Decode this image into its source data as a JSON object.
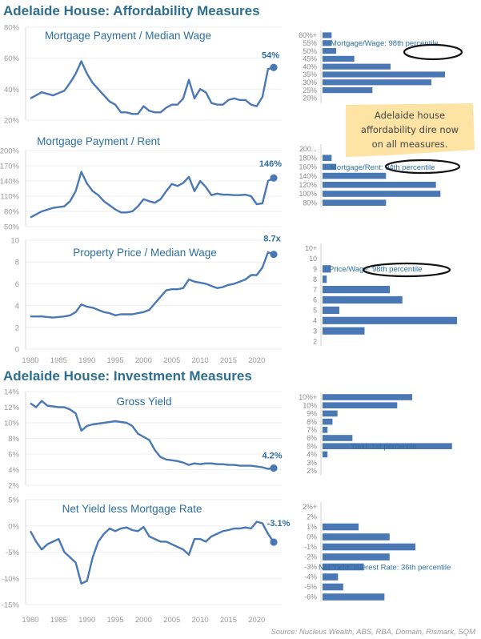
{
  "titles": {
    "affordability": "Adelaide House: Affordability Measures",
    "investment": "Adelaide House: Investment Measures"
  },
  "note": {
    "lines": [
      "Adelaide house",
      "affordability dire now",
      "on all measures."
    ],
    "color": "#fde4a5"
  },
  "source": "Source: Nucleus Wealth, ABS, RBA, Domain, Rismark, SQM",
  "colors": {
    "line": "#4a78b4",
    "bar": "#4a78b4",
    "title": "#2e6f8f",
    "tick": "#9a9a9a"
  },
  "chart_data": [
    {
      "type": "line",
      "title": "Mortgage Payment / Median Wage",
      "yticks": [
        "20%",
        "40%",
        "60%",
        "80%"
      ],
      "ylim": [
        20,
        80
      ],
      "end_label": "54%",
      "series": [
        {
          "x": [
            1980,
            1982,
            1984,
            1986,
            1987,
            1988,
            1989,
            1990,
            1991,
            1992,
            1993,
            1994,
            1995,
            1996,
            1997,
            1998,
            1999,
            2000,
            2001,
            2002,
            2003,
            2004,
            2005,
            2006,
            2007,
            2008,
            2009,
            2010,
            2011,
            2012,
            2013,
            2014,
            2015,
            2016,
            2017,
            2018,
            2019,
            2020,
            2021,
            2022,
            2023
          ],
          "values": [
            34,
            38,
            36,
            39,
            44,
            50,
            58,
            50,
            44,
            40,
            36,
            32,
            30,
            25,
            25,
            24,
            24,
            29,
            26,
            25,
            25,
            28,
            30,
            30,
            34,
            46,
            34,
            40,
            38,
            31,
            30,
            30,
            33,
            34,
            33,
            33,
            30,
            29,
            35,
            53,
            54
          ]
        }
      ]
    },
    {
      "type": "line",
      "title": "Mortgage Payment / Rent",
      "yticks": [
        "50%",
        "80%",
        "110%",
        "140%",
        "170%",
        "200%"
      ],
      "ylim": [
        50,
        200
      ],
      "end_label": "146%",
      "series": [
        {
          "x": [
            1980,
            1982,
            1984,
            1986,
            1987,
            1988,
            1989,
            1990,
            1991,
            1992,
            1993,
            1994,
            1995,
            1996,
            1997,
            1998,
            1999,
            2000,
            2001,
            2002,
            2003,
            2004,
            2005,
            2006,
            2007,
            2008,
            2009,
            2010,
            2011,
            2012,
            2013,
            2014,
            2015,
            2016,
            2017,
            2018,
            2019,
            2020,
            2021,
            2022,
            2023
          ],
          "values": [
            68,
            80,
            87,
            90,
            100,
            120,
            158,
            135,
            120,
            112,
            100,
            92,
            84,
            78,
            78,
            80,
            90,
            104,
            100,
            97,
            104,
            120,
            134,
            130,
            136,
            148,
            120,
            140,
            128,
            112,
            115,
            113,
            113,
            112,
            112,
            113,
            110,
            94,
            96,
            140,
            146
          ]
        }
      ]
    },
    {
      "type": "line",
      "title": "Property Price / Median Wage",
      "yticks": [
        "0",
        "2",
        "4",
        "6",
        "8",
        "10"
      ],
      "ylim": [
        0,
        10
      ],
      "xticks": [
        "1980",
        "1985",
        "1990",
        "1995",
        "2000",
        "2005",
        "2010",
        "2015",
        "2020"
      ],
      "end_label": "8.7x",
      "series": [
        {
          "x": [
            1980,
            1982,
            1984,
            1986,
            1987,
            1988,
            1989,
            1990,
            1991,
            1992,
            1993,
            1994,
            1995,
            1996,
            1997,
            1998,
            1999,
            2000,
            2001,
            2002,
            2003,
            2004,
            2005,
            2006,
            2007,
            2008,
            2009,
            2010,
            2011,
            2012,
            2013,
            2014,
            2015,
            2016,
            2017,
            2018,
            2019,
            2020,
            2021,
            2022,
            2023
          ],
          "values": [
            3.0,
            3.0,
            2.9,
            3.0,
            3.1,
            3.4,
            4.1,
            3.9,
            3.8,
            3.6,
            3.4,
            3.3,
            3.1,
            3.2,
            3.2,
            3.2,
            3.3,
            3.4,
            3.6,
            4.2,
            4.8,
            5.4,
            5.5,
            5.5,
            5.6,
            6.4,
            6.2,
            6.1,
            6.0,
            5.8,
            5.6,
            5.7,
            5.9,
            6.0,
            6.2,
            6.4,
            6.8,
            6.8,
            7.5,
            8.9,
            8.7
          ]
        }
      ]
    },
    {
      "type": "line",
      "title": "Gross Yield",
      "yticks": [
        "2%",
        "4%",
        "6%",
        "8%",
        "10%",
        "12%",
        "14%"
      ],
      "ylim": [
        2,
        14
      ],
      "end_label": "4.2%",
      "series": [
        {
          "x": [
            1980,
            1981,
            1982,
            1983,
            1984,
            1985,
            1986,
            1987,
            1988,
            1989,
            1990,
            1991,
            1992,
            1993,
            1994,
            1995,
            1996,
            1997,
            1998,
            1999,
            2000,
            2001,
            2002,
            2003,
            2004,
            2005,
            2006,
            2007,
            2008,
            2009,
            2010,
            2011,
            2012,
            2013,
            2014,
            2015,
            2016,
            2017,
            2018,
            2019,
            2020,
            2021,
            2022,
            2023
          ],
          "values": [
            12.5,
            12.0,
            12.8,
            12.2,
            12.1,
            12.0,
            12.0,
            11.7,
            11.2,
            9.0,
            9.6,
            9.8,
            9.9,
            10.0,
            10.1,
            10.2,
            10.1,
            10.0,
            9.6,
            8.6,
            8.2,
            7.8,
            6.5,
            5.6,
            5.3,
            5.2,
            5.1,
            4.9,
            4.6,
            4.8,
            4.7,
            4.8,
            4.8,
            4.7,
            4.7,
            4.6,
            4.6,
            4.5,
            4.5,
            4.5,
            4.4,
            4.3,
            4.1,
            4.2
          ]
        }
      ]
    },
    {
      "type": "line",
      "title": "Net Yield less Mortgage Rate",
      "yticks": [
        "-15%",
        "-10%",
        "-5%",
        "0%",
        "5%"
      ],
      "ylim": [
        -15,
        5
      ],
      "xticks": [
        "1980",
        "1985",
        "1990",
        "1995",
        "2000",
        "2005",
        "2010",
        "2015",
        "2020"
      ],
      "end_label": "-3.1%",
      "series": [
        {
          "x": [
            1980,
            1981,
            1982,
            1983,
            1984,
            1985,
            1986,
            1987,
            1988,
            1989,
            1990,
            1991,
            1992,
            1993,
            1994,
            1995,
            1996,
            1997,
            1998,
            1999,
            2000,
            2001,
            2002,
            2003,
            2004,
            2005,
            2006,
            2007,
            2008,
            2009,
            2010,
            2011,
            2012,
            2013,
            2014,
            2015,
            2016,
            2017,
            2018,
            2019,
            2020,
            2021,
            2022,
            2023
          ],
          "values": [
            -1.0,
            -3.0,
            -4.5,
            -3.5,
            -3.0,
            -2.5,
            -5.0,
            -6.0,
            -7.0,
            -11.0,
            -10.5,
            -6.0,
            -3.0,
            -1.5,
            -0.5,
            -1.0,
            -0.5,
            -0.3,
            -0.8,
            -1.0,
            -0.2,
            -2.0,
            -2.5,
            -3.0,
            -3.0,
            -3.5,
            -4.0,
            -4.5,
            -5.5,
            -2.5,
            -2.5,
            -3.0,
            -2.0,
            -1.5,
            -1.0,
            -0.8,
            -0.5,
            -0.5,
            -0.3,
            -0.5,
            0.8,
            0.5,
            -1.5,
            -3.1
          ]
        }
      ]
    },
    {
      "type": "bar",
      "orientation": "horizontal",
      "categories": [
        "60%+",
        "55%",
        "50%",
        "45%",
        "40%",
        "35%",
        "30%",
        "25%",
        "20%"
      ],
      "values": [
        2,
        2,
        3,
        7,
        15,
        27,
        24,
        11,
        0
      ],
      "xlim": [
        0,
        30
      ],
      "annotation": "Mortgage/Wage: 98th percentile"
    },
    {
      "type": "bar",
      "orientation": "horizontal",
      "categories": [
        "200...",
        "180%",
        "160%",
        "140%",
        "120%",
        "100%",
        "80%"
      ],
      "values": [
        0,
        2,
        3,
        14,
        25,
        26,
        14
      ],
      "xlim": [
        0,
        30
      ],
      "annotation": "Mortgage/Rent: 94th percentile"
    },
    {
      "type": "bar",
      "orientation": "horizontal",
      "categories": [
        "10+",
        "10",
        "9",
        "8",
        "7",
        "6",
        "5",
        "4",
        "3",
        "2"
      ],
      "values": [
        0,
        0,
        2,
        1,
        16,
        19,
        4,
        32,
        10,
        0
      ],
      "xlim": [
        0,
        32
      ],
      "annotation": "Price/Wage: 98th percentile"
    },
    {
      "type": "bar",
      "orientation": "horizontal",
      "categories": [
        "10%+",
        "10%",
        "9%",
        "8%",
        "7%",
        "6%",
        "5%",
        "4%",
        "3%",
        "2%"
      ],
      "values": [
        18,
        15,
        3,
        2,
        1,
        6,
        26,
        1,
        0,
        0
      ],
      "xlim": [
        0,
        27
      ],
      "annotation": "Yield: 1st percentile"
    },
    {
      "type": "bar",
      "orientation": "horizontal",
      "categories": [
        "2%+",
        "2%",
        "1%",
        "0%",
        "-1%",
        "-2%",
        "-3%",
        "-4%",
        "-5%",
        "-6%"
      ],
      "values": [
        0,
        0,
        7,
        13,
        18,
        13,
        8,
        3,
        4,
        12
      ],
      "xlim": [
        0,
        18
      ],
      "annotation": "Net Yield: Interest Rate: 36th percentile"
    }
  ]
}
